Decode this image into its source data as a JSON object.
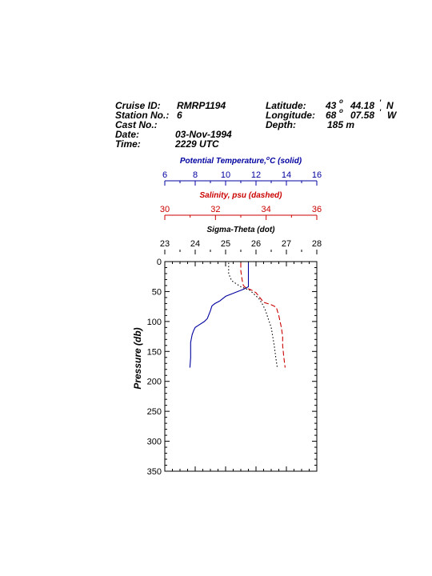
{
  "header": {
    "cruise_id_label": "Cruise ID:",
    "cruise_id": "RMRP1194",
    "station_label": "Station No.:",
    "station": "6",
    "cast_label": "Cast No.:",
    "cast": "",
    "date_label": "Date:",
    "date": "03-Nov-1994",
    "time_label": "Time:",
    "time": "2229 UTC",
    "latitude_label": "Latitude:",
    "latitude_deg": "43",
    "latitude_min": "44.18",
    "latitude_hemi": "N",
    "longitude_label": "Longitude:",
    "longitude_deg": "68",
    "longitude_min": "07.58",
    "longitude_hemi": "W",
    "depth_label": "Depth:",
    "depth": "185 m",
    "degree_symbol": "o",
    "minute_symbol": "'"
  },
  "colors": {
    "temperature": "#0000a0",
    "salinity": "#cc0000",
    "sigma": "#000000"
  },
  "chart_data": {
    "type": "line",
    "y_axis": {
      "label": "Pressure (db)",
      "range": [
        0,
        350
      ],
      "inverted": true,
      "ticks": [
        0,
        50,
        100,
        150,
        200,
        250,
        300,
        350
      ]
    },
    "x_axes": [
      {
        "id": "temperature",
        "title_parts": [
          "Potential Temperature,",
          "o",
          "C (solid)"
        ],
        "range": [
          6,
          16
        ],
        "ticks": [
          6,
          8,
          10,
          12,
          14,
          16
        ]
      },
      {
        "id": "salinity",
        "title": "Salinity, psu  (dashed)",
        "range": [
          30,
          36
        ],
        "ticks": [
          30,
          32,
          34,
          36
        ]
      },
      {
        "id": "sigma",
        "title": "Sigma-Theta (dot)",
        "range": [
          23,
          28
        ],
        "ticks": [
          23,
          24,
          25,
          26,
          27,
          28
        ]
      }
    ],
    "series": [
      {
        "axis": "temperature",
        "style": "solid",
        "points": [
          [
            11.5,
            2
          ],
          [
            11.5,
            42
          ],
          [
            11.2,
            46
          ],
          [
            10.8,
            50
          ],
          [
            10.4,
            54
          ],
          [
            10.0,
            58
          ],
          [
            9.8,
            62
          ],
          [
            9.6,
            66
          ],
          [
            9.3,
            70
          ],
          [
            9.1,
            74
          ],
          [
            9.0,
            82
          ],
          [
            8.8,
            95
          ],
          [
            8.6,
            100
          ],
          [
            8.3,
            105
          ],
          [
            8.0,
            110
          ],
          [
            7.9,
            115
          ],
          [
            7.8,
            122
          ],
          [
            7.75,
            128
          ],
          [
            7.7,
            135
          ],
          [
            7.7,
            160
          ],
          [
            7.65,
            177
          ]
        ]
      },
      {
        "axis": "salinity",
        "style": "dashed",
        "points": [
          [
            33.0,
            2
          ],
          [
            33.0,
            15
          ],
          [
            33.05,
            30
          ],
          [
            33.1,
            40
          ],
          [
            33.2,
            44
          ],
          [
            33.4,
            47
          ],
          [
            33.6,
            52
          ],
          [
            33.75,
            60
          ],
          [
            33.9,
            68
          ],
          [
            34.2,
            72
          ],
          [
            34.4,
            76
          ],
          [
            34.5,
            90
          ],
          [
            34.55,
            100
          ],
          [
            34.6,
            110
          ],
          [
            34.65,
            125
          ],
          [
            34.65,
            140
          ],
          [
            34.7,
            160
          ],
          [
            34.75,
            177
          ]
        ]
      },
      {
        "axis": "sigma",
        "style": "dotted",
        "points": [
          [
            25.1,
            2
          ],
          [
            25.1,
            20
          ],
          [
            25.2,
            32
          ],
          [
            25.5,
            42
          ],
          [
            25.8,
            48
          ],
          [
            25.95,
            55
          ],
          [
            26.1,
            62
          ],
          [
            26.2,
            70
          ],
          [
            26.3,
            80
          ],
          [
            26.4,
            95
          ],
          [
            26.5,
            110
          ],
          [
            26.55,
            125
          ],
          [
            26.6,
            140
          ],
          [
            26.65,
            160
          ],
          [
            26.7,
            177
          ]
        ]
      }
    ]
  }
}
